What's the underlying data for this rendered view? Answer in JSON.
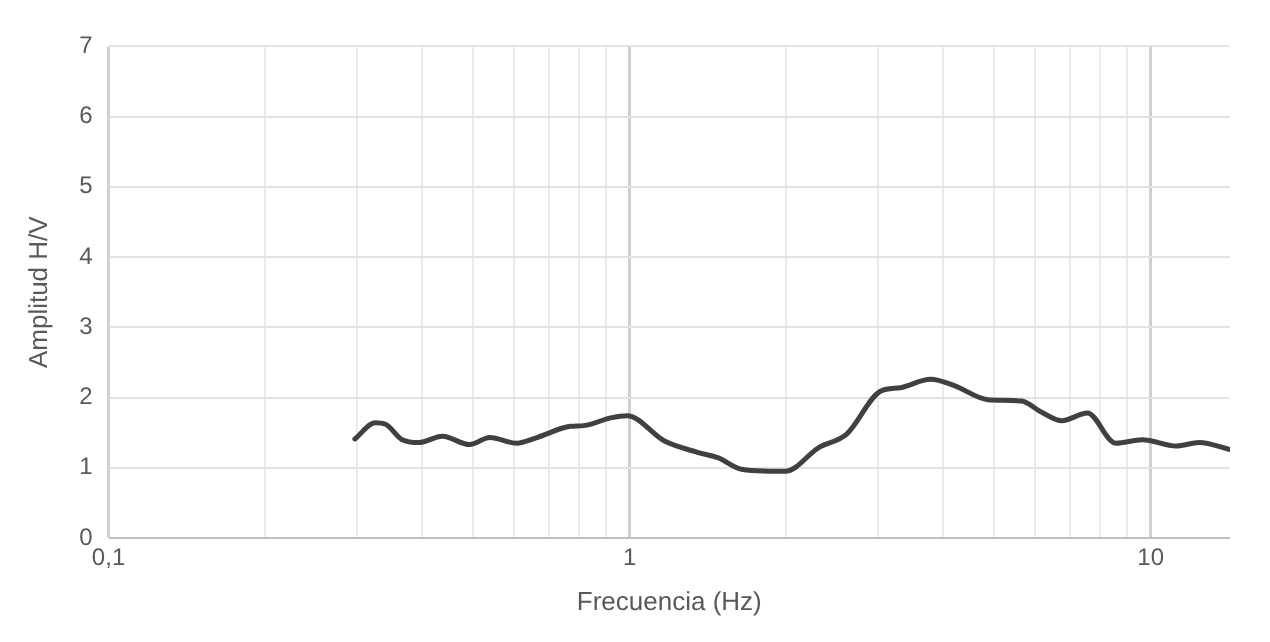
{
  "chart_data": {
    "type": "line",
    "xlabel": "Frecuencia (Hz)",
    "ylabel": "Amplitud H/V",
    "log": "x",
    "grid": true,
    "legend": false,
    "marker": "none",
    "line_style": "solid",
    "xlim": [
      0.1,
      14.2
    ],
    "xticks": [
      {
        "value": 0.1,
        "label": "0,1"
      },
      {
        "value": 0.2,
        "label": null
      },
      {
        "value": 0.3,
        "label": null
      },
      {
        "value": 0.4,
        "label": null
      },
      {
        "value": 0.5,
        "label": null
      },
      {
        "value": 0.6,
        "label": null
      },
      {
        "value": 0.7,
        "label": null
      },
      {
        "value": 0.8,
        "label": null
      },
      {
        "value": 0.9,
        "label": null
      },
      1,
      {
        "value": 2,
        "label": null
      },
      {
        "value": 3,
        "label": null
      },
      {
        "value": 4,
        "label": null
      },
      {
        "value": 5,
        "label": null
      },
      {
        "value": 6,
        "label": null
      },
      {
        "value": 7,
        "label": null
      },
      {
        "value": 8,
        "label": null
      },
      {
        "value": 9,
        "label": null
      },
      10
    ],
    "ylim": [
      0,
      7
    ],
    "yticks": [
      0,
      1,
      2,
      3,
      4,
      5,
      6,
      7
    ],
    "series": [
      {
        "color": "#404040",
        "x": [
          0.297,
          0.325,
          0.34,
          0.366,
          0.394,
          0.437,
          0.493,
          0.539,
          0.607,
          0.664,
          0.77,
          0.817,
          0.92,
          0.99,
          1.167,
          1.35,
          1.48,
          1.64,
          1.94,
          1.99,
          2.31,
          2.61,
          3.03,
          3.31,
          3.78,
          4.2,
          4.87,
          5.65,
          6.18,
          6.75,
          7.56,
          8.57,
          9.64,
          11.2,
          12.4,
          14.2
        ],
        "values": [
          1.41,
          1.64,
          1.62,
          1.4,
          1.36,
          1.45,
          1.33,
          1.43,
          1.35,
          1.43,
          1.59,
          1.6,
          1.71,
          1.74,
          1.38,
          1.22,
          1.14,
          0.98,
          0.95,
          0.95,
          1.29,
          1.48,
          2.09,
          2.14,
          2.26,
          2.17,
          1.97,
          1.95,
          1.79,
          1.67,
          1.78,
          1.35,
          1.4,
          1.31,
          1.36,
          1.26
        ]
      }
    ]
  }
}
